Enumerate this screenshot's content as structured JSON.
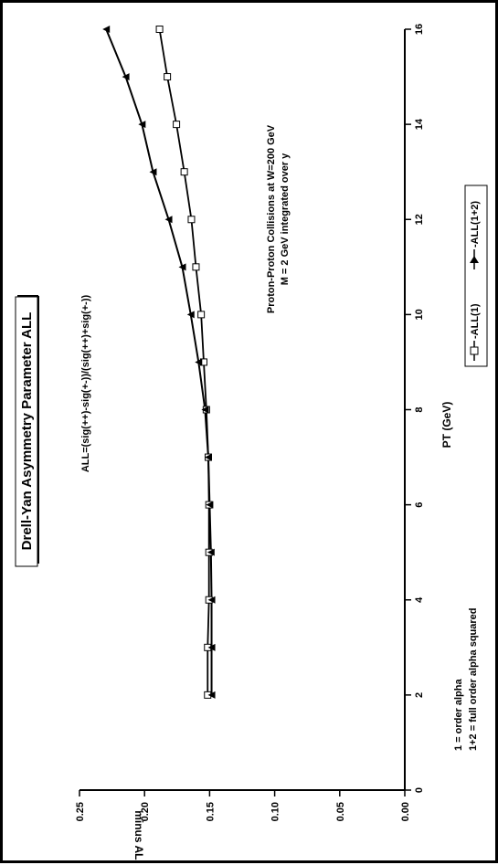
{
  "chart_data": {
    "type": "line",
    "title": "Drell-Yan Asymmetry Parameter ALL",
    "xlabel": "PT (GeV)",
    "ylabel": "minus ALL",
    "xlim": [
      0,
      16
    ],
    "ylim": [
      0,
      0.25
    ],
    "x_ticks": [
      "0",
      "2",
      "4",
      "6",
      "8",
      "10",
      "12",
      "14",
      "16"
    ],
    "y_ticks": [
      "0.00",
      "0.05",
      "0.10",
      "0.15",
      "0.20",
      "0.25"
    ],
    "grid": false,
    "legend_position": "bottom-right",
    "annotations": {
      "formula": "ALL=(sig(++)-sig(+-))/(sig(++)+sig(+-))",
      "process_line1": "Proton-Proton Collisions at W=200 GeV",
      "process_line2": "M = 2 GeV  integrated over y",
      "note_line1": "1 = order alpha",
      "note_line2": "1+2 = full order alpha squared"
    },
    "series": [
      {
        "name": "-ALL(1)",
        "marker": "square-open",
        "color": "#000000",
        "x": [
          2,
          3,
          4,
          5,
          6,
          7,
          8,
          9,
          10,
          11,
          12,
          13,
          14,
          15,
          16
        ],
        "values": [
          0.1515,
          0.1515,
          0.1505,
          0.1505,
          0.1505,
          0.151,
          0.1525,
          0.1545,
          0.1565,
          0.1605,
          0.164,
          0.1695,
          0.1755,
          0.1825,
          0.1885
        ]
      },
      {
        "name": "-ALL(1+2)",
        "marker": "triangle-filled",
        "color": "#000000",
        "x": [
          2,
          3,
          4,
          5,
          6,
          7,
          8,
          9,
          10,
          11,
          12,
          13,
          14,
          15,
          16
        ],
        "values": [
          0.1485,
          0.1485,
          0.1485,
          0.149,
          0.15,
          0.151,
          0.1535,
          0.1585,
          0.1645,
          0.171,
          0.1815,
          0.1935,
          0.202,
          0.2145,
          0.2295
        ]
      }
    ]
  }
}
